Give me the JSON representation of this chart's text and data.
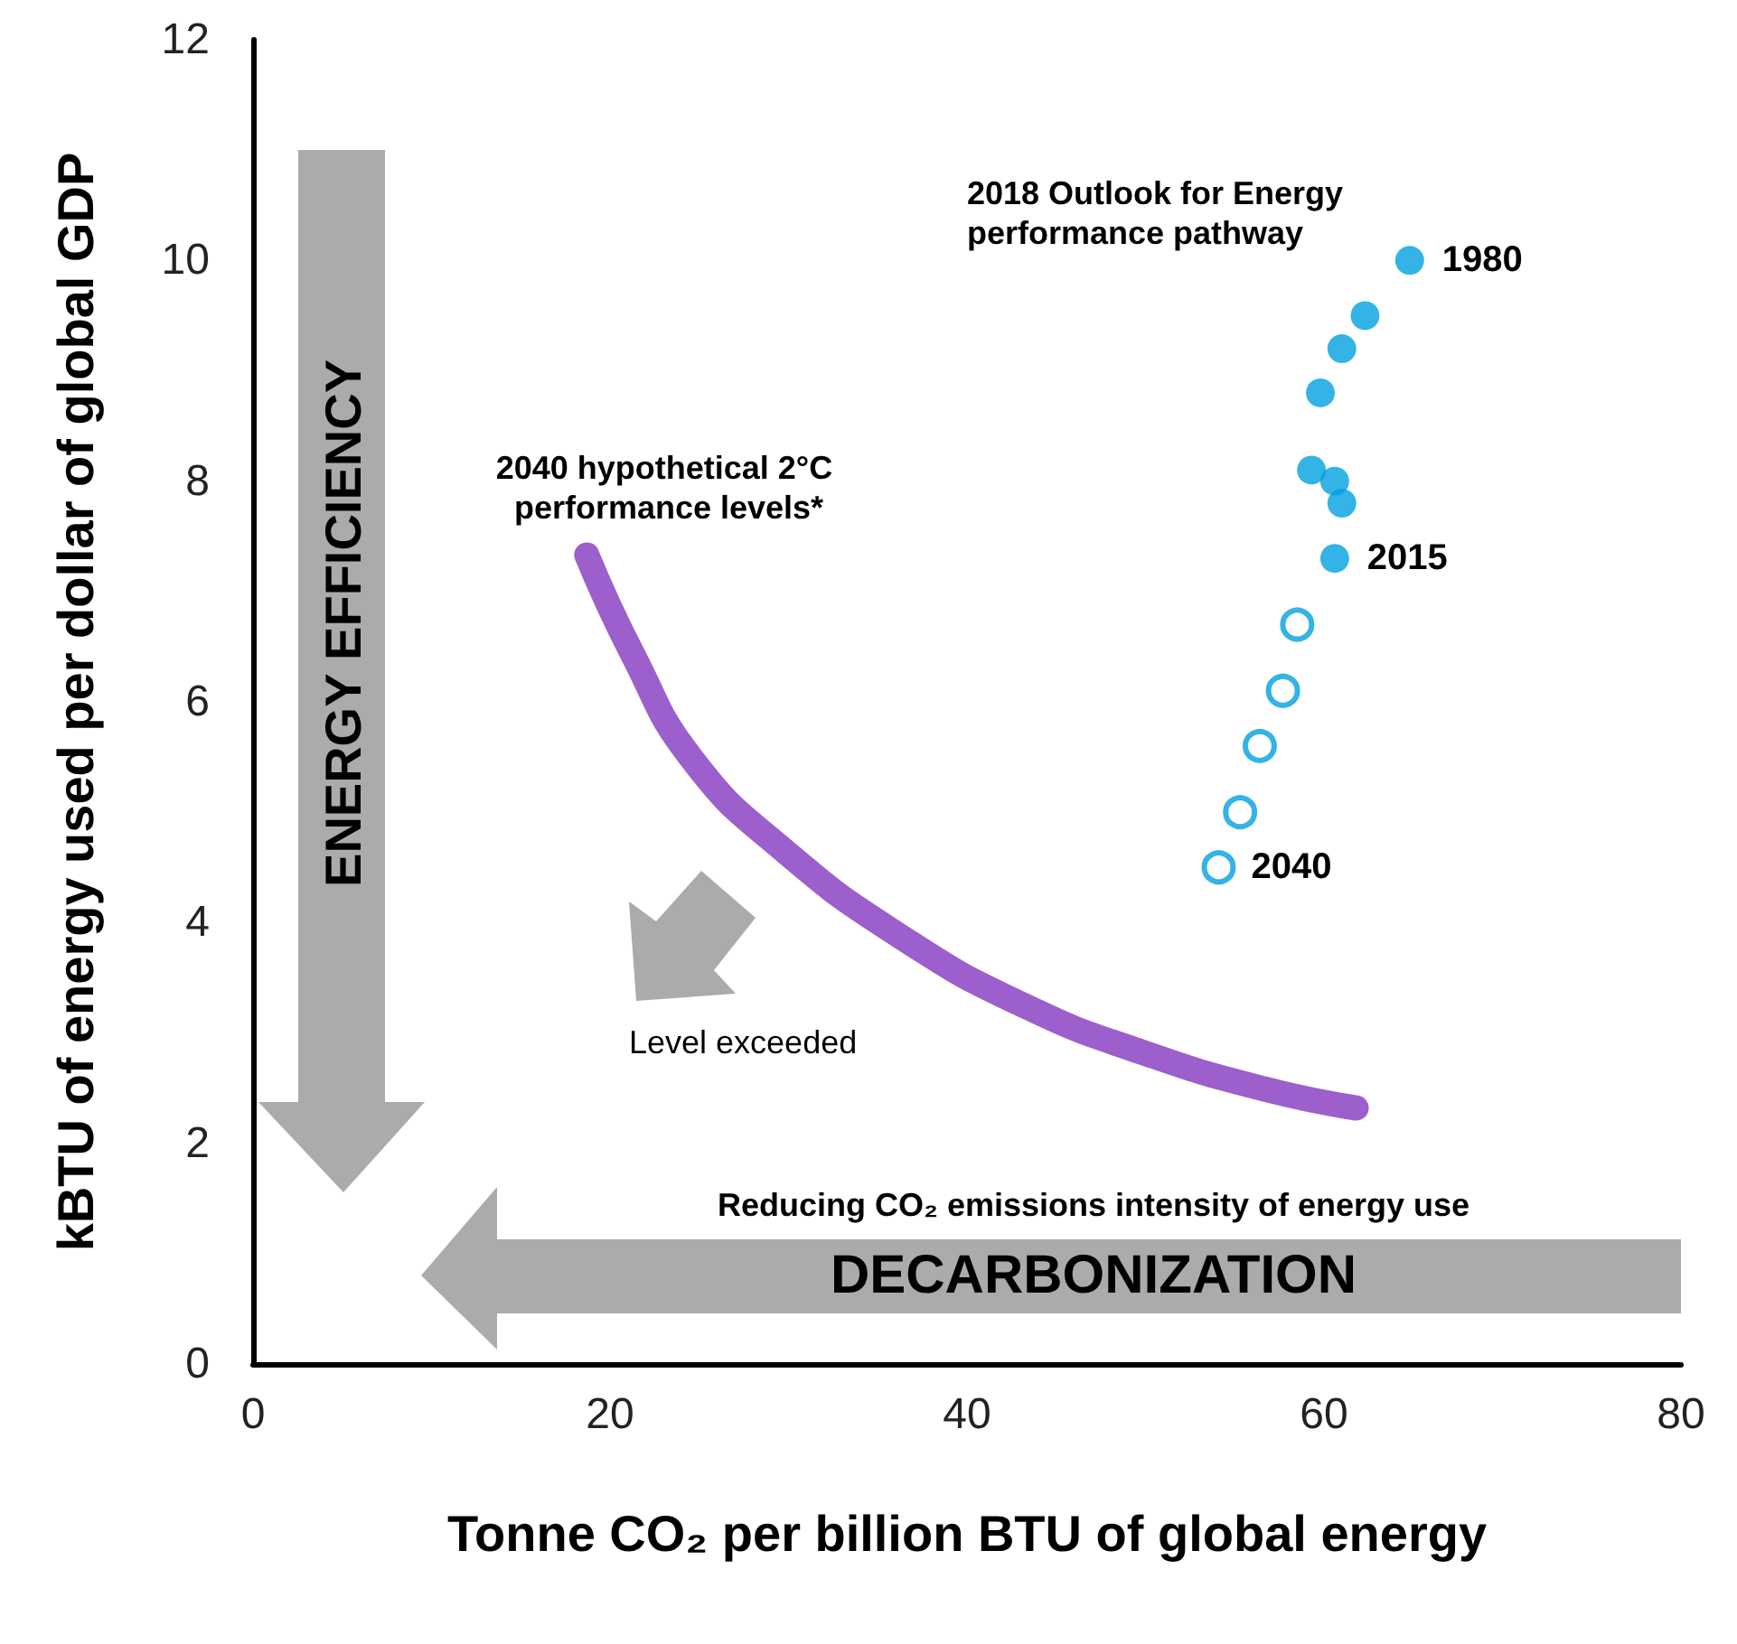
{
  "chart_data": {
    "type": "scatter",
    "xlabel": "Tonne CO₂ per billion BTU of global energy",
    "ylabel": "kBTU of energy used per dollar of global GDP",
    "xlim": [
      0,
      80
    ],
    "xticks": [
      0,
      20,
      40,
      60,
      80
    ],
    "ylim": [
      0,
      12
    ],
    "yticks": [
      0,
      2,
      4,
      6,
      8,
      10,
      12
    ],
    "grid": false,
    "marker": "circle",
    "series": [
      {
        "color": "#00a0e0",
        "x": [
          64.8,
          62.3,
          61.0,
          59.8,
          59.3,
          60.6,
          61.0,
          60.6
        ],
        "values": [
          10.0,
          9.5,
          9.2,
          8.8,
          8.1,
          8.0,
          7.8,
          7.3
        ]
      },
      {
        "color": "#00a0e0",
        "x": [
          58.5,
          57.7,
          56.4,
          55.3,
          54.1
        ],
        "values": [
          6.7,
          6.1,
          5.6,
          5.0,
          4.5
        ]
      },
      {
        "type": "line",
        "color": "#9c5fcc",
        "line_style": "solid",
        "marker": "none",
        "x": [
          18.7,
          21.3,
          24.6,
          29.7,
          36.5,
          43.3,
          49.9,
          56.7,
          61.8
        ],
        "values": [
          7.33,
          6.42,
          5.48,
          4.66,
          3.85,
          3.24,
          2.82,
          2.49,
          2.32
        ]
      }
    ],
    "annotations": [
      "2018 Outlook for Energy performance pathway",
      {
        "text": "1980",
        "x": 64.8,
        "y": 10.0
      },
      {
        "text": "2015",
        "x": 60.6,
        "y": 7.3
      },
      {
        "text": "2040",
        "x": 54.1,
        "y": 4.5
      },
      "2040 hypothetical 2°C performance levels*",
      "Level exceeded",
      "ENERGY EFFICIENCY",
      "DECARBONIZATION",
      "Reducing CO₂ emissions intensity of energy use"
    ]
  }
}
